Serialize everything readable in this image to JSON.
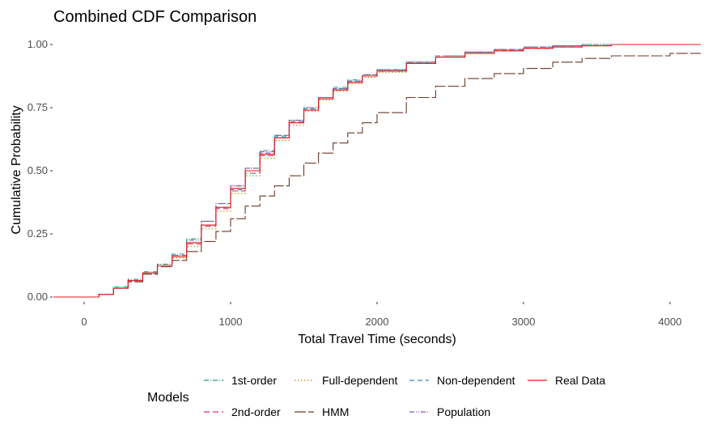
{
  "chart_data": {
    "type": "line",
    "title": "Combined CDF Comparison",
    "xlabel": "Total Travel Time (seconds)",
    "ylabel": "Cumulative Probability",
    "xlim": [
      -210,
      4210
    ],
    "ylim": [
      0,
      1
    ],
    "x_ticks": [
      0,
      1000,
      2000,
      3000,
      4000
    ],
    "x_tick_labels": [
      "0",
      "1000",
      "2000",
      "3000",
      "4000"
    ],
    "y_ticks": [
      0,
      0.25,
      0.5,
      0.75,
      1.0
    ],
    "y_tick_labels": [
      "0.00",
      "0.25",
      "0.50",
      "0.75",
      "1.00"
    ],
    "grid": false,
    "legend": {
      "title": "Models",
      "position": "bottom"
    },
    "series": [
      {
        "name": "1st-order",
        "color": "#1b9e77",
        "dash": "6,2,1,2",
        "x": [
          -210,
          0,
          100,
          200,
          300,
          400,
          500,
          600,
          700,
          800,
          900,
          1000,
          1100,
          1200,
          1300,
          1400,
          1500,
          1600,
          1700,
          1800,
          1900,
          2000,
          2200,
          2400,
          2600,
          2800,
          3000,
          3200,
          3400,
          3600,
          4000,
          4210
        ],
        "y": [
          0,
          0,
          0.01,
          0.04,
          0.07,
          0.1,
          0.13,
          0.17,
          0.23,
          0.3,
          0.37,
          0.44,
          0.51,
          0.58,
          0.64,
          0.7,
          0.75,
          0.79,
          0.83,
          0.86,
          0.88,
          0.9,
          0.93,
          0.955,
          0.97,
          0.98,
          0.99,
          0.995,
          1.0,
          1.0,
          1.0,
          1.0
        ]
      },
      {
        "name": "2nd-order",
        "color": "#d6336c",
        "dash": "7,4",
        "x": [
          -210,
          0,
          100,
          200,
          300,
          400,
          500,
          600,
          700,
          800,
          900,
          1000,
          1100,
          1200,
          1300,
          1400,
          1500,
          1600,
          1700,
          1800,
          1900,
          2000,
          2200,
          2400,
          2600,
          2800,
          3000,
          3200,
          3400,
          3600,
          4000,
          4210
        ],
        "y": [
          0,
          0,
          0.01,
          0.035,
          0.065,
          0.095,
          0.125,
          0.16,
          0.21,
          0.28,
          0.35,
          0.42,
          0.49,
          0.56,
          0.63,
          0.69,
          0.74,
          0.785,
          0.82,
          0.85,
          0.875,
          0.895,
          0.925,
          0.95,
          0.965,
          0.975,
          0.985,
          0.99,
          0.995,
          1.0,
          1.0,
          1.0
        ]
      },
      {
        "name": "Full-dependent",
        "color": "#b8860b",
        "dash": "1.5,2.5",
        "x": [
          -210,
          0,
          100,
          200,
          300,
          400,
          500,
          600,
          700,
          800,
          900,
          1000,
          1100,
          1200,
          1300,
          1400,
          1500,
          1600,
          1700,
          1800,
          1900,
          2000,
          2200,
          2400,
          2600,
          2800,
          3000,
          3200,
          3400,
          3600,
          4000,
          4210
        ],
        "y": [
          0,
          0,
          0.01,
          0.035,
          0.065,
          0.095,
          0.125,
          0.155,
          0.2,
          0.27,
          0.34,
          0.41,
          0.48,
          0.55,
          0.62,
          0.68,
          0.735,
          0.78,
          0.815,
          0.845,
          0.87,
          0.89,
          0.925,
          0.95,
          0.965,
          0.975,
          0.985,
          0.99,
          0.995,
          1.0,
          1.0,
          1.0
        ]
      },
      {
        "name": "HMM",
        "color": "#6b3a2a",
        "dash": "14,3",
        "x": [
          -210,
          0,
          100,
          200,
          300,
          400,
          500,
          600,
          700,
          800,
          900,
          1000,
          1100,
          1200,
          1300,
          1400,
          1500,
          1600,
          1700,
          1800,
          1900,
          2000,
          2200,
          2400,
          2600,
          2800,
          3000,
          3200,
          3400,
          3600,
          4000,
          4210
        ],
        "y": [
          0,
          0,
          0.01,
          0.035,
          0.06,
          0.09,
          0.12,
          0.145,
          0.18,
          0.22,
          0.26,
          0.31,
          0.36,
          0.4,
          0.44,
          0.48,
          0.53,
          0.57,
          0.61,
          0.65,
          0.69,
          0.73,
          0.79,
          0.835,
          0.865,
          0.885,
          0.905,
          0.93,
          0.945,
          0.955,
          0.965,
          0.965
        ]
      },
      {
        "name": "Non-dependent",
        "color": "#3182bd",
        "dash": "6,4",
        "x": [
          -210,
          0,
          100,
          200,
          300,
          400,
          500,
          600,
          700,
          800,
          900,
          1000,
          1100,
          1200,
          1300,
          1400,
          1500,
          1600,
          1700,
          1800,
          1900,
          2000,
          2200,
          2400,
          2600,
          2800,
          3000,
          3200,
          3400,
          3600,
          4000,
          4210
        ],
        "y": [
          0,
          0,
          0.01,
          0.035,
          0.065,
          0.095,
          0.125,
          0.165,
          0.215,
          0.285,
          0.355,
          0.425,
          0.5,
          0.57,
          0.635,
          0.695,
          0.745,
          0.79,
          0.825,
          0.855,
          0.88,
          0.9,
          0.93,
          0.955,
          0.97,
          0.98,
          0.99,
          0.995,
          1.0,
          1.0,
          1.0,
          1.0
        ]
      },
      {
        "name": "Population",
        "color": "#8856a7",
        "dash": "6,2,1,2,1,2",
        "x": [
          -210,
          0,
          100,
          200,
          300,
          400,
          500,
          600,
          700,
          800,
          900,
          1000,
          1100,
          1200,
          1300,
          1400,
          1500,
          1600,
          1700,
          1800,
          1900,
          2000,
          2200,
          2400,
          2600,
          2800,
          3000,
          3200,
          3400,
          3600,
          4000,
          4210
        ],
        "y": [
          0,
          0,
          0.01,
          0.035,
          0.065,
          0.095,
          0.125,
          0.165,
          0.225,
          0.3,
          0.37,
          0.44,
          0.51,
          0.575,
          0.64,
          0.7,
          0.75,
          0.79,
          0.825,
          0.855,
          0.88,
          0.9,
          0.93,
          0.955,
          0.97,
          0.98,
          0.99,
          0.995,
          1.0,
          1.0,
          1.0,
          1.0
        ]
      },
      {
        "name": "Real Data",
        "color": "#e31a1c",
        "dash": "",
        "x": [
          -210,
          0,
          100,
          200,
          300,
          400,
          500,
          600,
          700,
          800,
          900,
          1000,
          1100,
          1200,
          1300,
          1400,
          1500,
          1600,
          1700,
          1800,
          1900,
          2000,
          2200,
          2400,
          2600,
          2800,
          3000,
          3200,
          3400,
          3600,
          4000,
          4210
        ],
        "y": [
          0,
          0,
          0.01,
          0.035,
          0.065,
          0.095,
          0.125,
          0.16,
          0.215,
          0.285,
          0.355,
          0.43,
          0.5,
          0.565,
          0.63,
          0.69,
          0.74,
          0.785,
          0.82,
          0.85,
          0.875,
          0.895,
          0.925,
          0.95,
          0.965,
          0.975,
          0.985,
          0.99,
          0.995,
          1.0,
          1.0,
          1.0
        ]
      }
    ]
  }
}
